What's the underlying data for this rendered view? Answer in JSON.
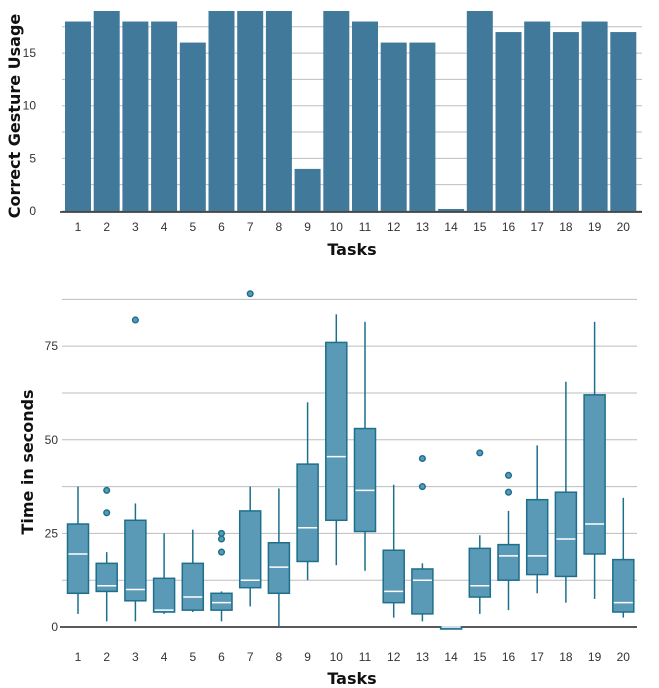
{
  "chart_data": [
    {
      "type": "bar",
      "xlabel": "Tasks",
      "ylabel": "Correct Gesture Usage",
      "ylim": [
        0,
        19
      ],
      "yticks": [
        0,
        5,
        10,
        15
      ],
      "grid": "horizontal",
      "categories": [
        "1",
        "2",
        "3",
        "4",
        "5",
        "6",
        "7",
        "8",
        "9",
        "10",
        "11",
        "12",
        "13",
        "14",
        "15",
        "16",
        "17",
        "18",
        "19",
        "20"
      ],
      "values": [
        18,
        19,
        18,
        18,
        16,
        19,
        19,
        19,
        4,
        19,
        18,
        16,
        16,
        0,
        19,
        17,
        18,
        17,
        18,
        17
      ],
      "colors": {
        "bar": "#41799b",
        "axis": "#222222"
      }
    },
    {
      "type": "box",
      "xlabel": "Tasks",
      "ylabel": "Time in seconds",
      "ylim": [
        0,
        90
      ],
      "yticks": [
        0,
        25,
        50,
        75
      ],
      "grid": "horizontal",
      "categories": [
        "1",
        "2",
        "3",
        "4",
        "5",
        "6",
        "7",
        "8",
        "9",
        "10",
        "11",
        "12",
        "13",
        "14",
        "15",
        "16",
        "17",
        "18",
        "19",
        "20"
      ],
      "boxes": [
        {
          "min": 3.5,
          "q1": 9,
          "median": 19.5,
          "q3": 27.5,
          "max": 37.5,
          "outliers": []
        },
        {
          "min": 1.5,
          "q1": 9.5,
          "median": 11,
          "q3": 17,
          "max": 20,
          "outliers": [
            30.5,
            36.5
          ]
        },
        {
          "min": 1.5,
          "q1": 7,
          "median": 10,
          "q3": 28.5,
          "max": 33,
          "outliers": [
            82
          ]
        },
        {
          "min": 3.5,
          "q1": 4,
          "median": 4.5,
          "q3": 13,
          "max": 25,
          "outliers": []
        },
        {
          "min": 4,
          "q1": 4.5,
          "median": 8,
          "q3": 17,
          "max": 26,
          "outliers": []
        },
        {
          "min": 1.5,
          "q1": 4.5,
          "median": 6.5,
          "q3": 9,
          "max": 9.5,
          "outliers": [
            20,
            23.5,
            25
          ]
        },
        {
          "min": 5.5,
          "q1": 10.5,
          "median": 12.5,
          "q3": 31,
          "max": 37.5,
          "outliers": [
            89
          ]
        },
        {
          "min": 0,
          "q1": 9,
          "median": 16,
          "q3": 22.5,
          "max": 37,
          "outliers": []
        },
        {
          "min": 12.5,
          "q1": 17.5,
          "median": 26.5,
          "q3": 43.5,
          "max": 60,
          "outliers": []
        },
        {
          "min": 16.5,
          "q1": 28.5,
          "median": 45.5,
          "q3": 76,
          "max": 83.5,
          "outliers": []
        },
        {
          "min": 15,
          "q1": 25.5,
          "median": 36.5,
          "q3": 53,
          "max": 81.5,
          "outliers": []
        },
        {
          "min": 2.5,
          "q1": 6.5,
          "median": 9.5,
          "q3": 20.5,
          "max": 38,
          "outliers": []
        },
        {
          "min": 1.5,
          "q1": 3.5,
          "median": 12.5,
          "q3": 15.5,
          "max": 17,
          "outliers": [
            37.5,
            45
          ]
        },
        {
          "min": 0,
          "q1": 0,
          "median": 0,
          "q3": 0,
          "max": 0,
          "outliers": []
        },
        {
          "min": 3.5,
          "q1": 8,
          "median": 11,
          "q3": 21,
          "max": 24.5,
          "outliers": [
            46.5
          ]
        },
        {
          "min": 4.5,
          "q1": 12.5,
          "median": 19,
          "q3": 22,
          "max": 31,
          "outliers": [
            36,
            40.5
          ]
        },
        {
          "min": 9,
          "q1": 14,
          "median": 19,
          "q3": 34,
          "max": 48.5,
          "outliers": []
        },
        {
          "min": 6.5,
          "q1": 13.5,
          "median": 23.5,
          "q3": 36,
          "max": 65.5,
          "outliers": []
        },
        {
          "min": 7.5,
          "q1": 19.5,
          "median": 27.5,
          "q3": 62,
          "max": 81.5,
          "outliers": []
        },
        {
          "min": 2.5,
          "q1": 4,
          "median": 6.5,
          "q3": 18,
          "max": 34.5,
          "outliers": []
        }
      ],
      "colors": {
        "box_fill": "#5a9ab7",
        "box_stroke": "#1d6f8c",
        "median": "#ffffff",
        "axis": "#222222"
      }
    }
  ]
}
